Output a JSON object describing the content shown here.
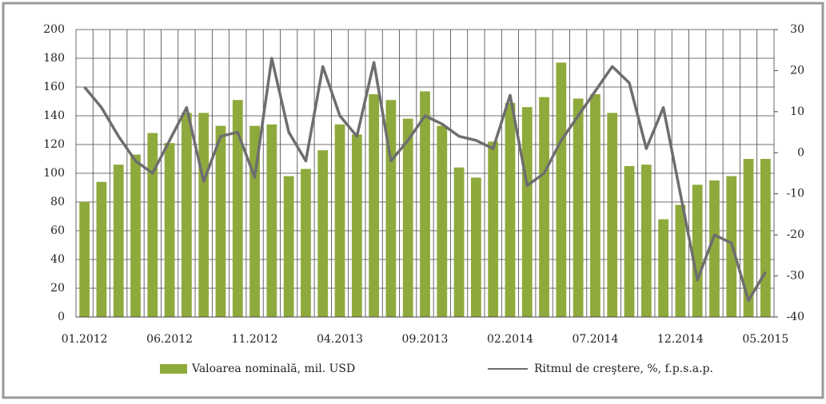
{
  "chart_data": {
    "type": "bar_line",
    "categories": [
      "01.2012",
      null,
      null,
      null,
      null,
      "06.2012",
      null,
      null,
      null,
      null,
      "11.2012",
      null,
      null,
      null,
      null,
      "04.2013",
      null,
      null,
      null,
      null,
      "09.2013",
      null,
      null,
      null,
      null,
      "02.2014",
      null,
      null,
      null,
      null,
      "07.2014",
      null,
      null,
      null,
      null,
      "12.2014",
      null,
      null,
      null,
      null,
      "05.2015"
    ],
    "series": [
      {
        "name": "Valoarea nominală, mil. USD",
        "color": "#8faa3c",
        "values": [
          80,
          94,
          106,
          113,
          128,
          121,
          142,
          142,
          133,
          151,
          133,
          134,
          98,
          103,
          116,
          134,
          127,
          155,
          151,
          138,
          157,
          133,
          104,
          97,
          122,
          149,
          146,
          153,
          177,
          152,
          155,
          142,
          105,
          106,
          68,
          78,
          92,
          95,
          98,
          110,
          110
        ]
      },
      {
        "name": "Ritmul de creştere, %, f.p.s.a.p.",
        "color": "#6e6e6e",
        "axis": "y2",
        "values": [
          16,
          11,
          4,
          -2,
          -5,
          3,
          11,
          -7,
          4,
          5,
          -6,
          23,
          5,
          -2,
          21,
          9,
          4,
          22,
          -2,
          3,
          9,
          7,
          4,
          3,
          1,
          14,
          -8,
          -5,
          3,
          9,
          15,
          21,
          17,
          1,
          11,
          -10,
          -31,
          -20,
          -22,
          -36,
          -29
        ]
      }
    ],
    "ylim": [
      0,
      200
    ],
    "yticks": [
      0,
      20,
      40,
      60,
      80,
      100,
      120,
      140,
      160,
      180,
      200
    ],
    "y2lim": [
      -40,
      30
    ],
    "y2ticks": [
      -40,
      -30,
      -20,
      -10,
      0,
      10,
      20,
      30
    ],
    "grid": true
  }
}
